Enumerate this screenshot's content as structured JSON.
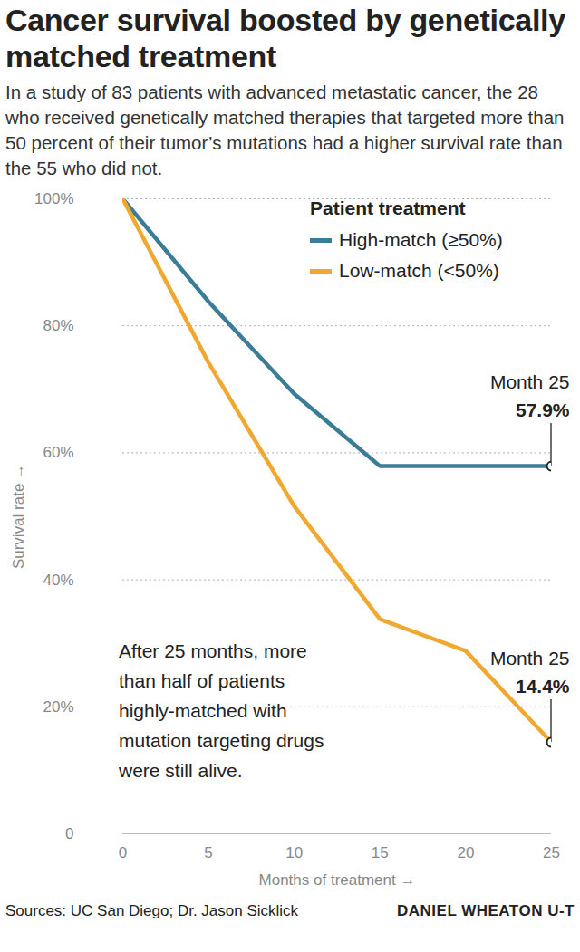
{
  "chart_data": {
    "type": "line",
    "title": "Cancer survival boosted by genetically matched treatment",
    "subtitle": "In a study of 83 patients with advanced metastatic cancer, the 28 who received genetically matched therapies that targeted more than 50 percent of their tumor’s mutations had a higher survival rate than the 55 who did not.",
    "x_label": "Months of treatment",
    "y_label": "Survival rate",
    "x": [
      0,
      5,
      10,
      15,
      20,
      25
    ],
    "series": [
      {
        "name": "High-match (≥50%)",
        "color": "#3b7c99",
        "values": [
          100,
          83.8,
          69.3,
          57.9,
          57.9,
          57.9
        ]
      },
      {
        "name": "Low-match (<50%)",
        "color": "#f0a830",
        "values": [
          100,
          74.2,
          51.6,
          33.8,
          28.8,
          14.4
        ]
      }
    ],
    "xlim": [
      0,
      25
    ],
    "xticks": [
      0,
      5,
      10,
      15,
      20,
      25
    ],
    "ylim": [
      0,
      100
    ],
    "yticks": [
      0,
      {
        "value": 20,
        "label": "20%"
      },
      {
        "value": 40,
        "label": "40%"
      },
      {
        "value": 60,
        "label": "60%"
      },
      {
        "value": 80,
        "label": "80%"
      },
      {
        "value": 100,
        "label": "100%"
      }
    ],
    "grid": true,
    "legend": "top-right",
    "legend_title": "Patient treatment",
    "annotations": [
      {
        "x": 25,
        "y": 57.9,
        "text": "Month 25",
        "value_label": "57.9%"
      },
      {
        "x": 25,
        "y": 14.4,
        "text": "Month 25",
        "value_label": "14.4%"
      }
    ],
    "note": "After 25 months, more than half of patients highly-matched with mutation targeting drugs were still alive.",
    "sources": "Sources: UC San Diego; Dr. Jason Sicklick",
    "credit": "DANIEL WHEATON U-T"
  }
}
